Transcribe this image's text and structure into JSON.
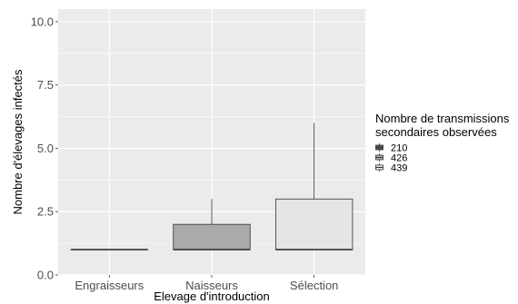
{
  "chart_data": {
    "type": "boxplot",
    "xlabel": "Elevage d'introduction",
    "ylabel": "Nombre d'élevages infectés",
    "ylim": [
      0,
      10.5
    ],
    "yticks": [
      "0.0",
      "2.5",
      "5.0",
      "7.5",
      "10.0"
    ],
    "ytick_values": [
      0,
      2.5,
      5,
      7.5,
      10
    ],
    "categories": [
      "Engraisseurs",
      "Naisseurs",
      "Sélection"
    ],
    "series": [
      {
        "name": "210",
        "category": "Engraisseurs",
        "fill": "#555555",
        "min": 1,
        "q1": 1,
        "median": 1,
        "q3": 1,
        "max": 1
      },
      {
        "name": "426",
        "category": "Naisseurs",
        "fill": "#aaaaaa",
        "min": 1,
        "q1": 1,
        "median": 1,
        "q3": 2,
        "max": 3
      },
      {
        "name": "439",
        "category": "Sélection",
        "fill": "#e5e5e5",
        "min": 1,
        "q1": 1,
        "median": 1,
        "q3": 3,
        "max": 6
      }
    ],
    "legend": {
      "title_lines": [
        "Nombre de transmissions",
        "secondaires observées"
      ],
      "position": "right"
    },
    "grid": true,
    "background": "#ebebeb",
    "gridline_color": "#ffffff"
  }
}
